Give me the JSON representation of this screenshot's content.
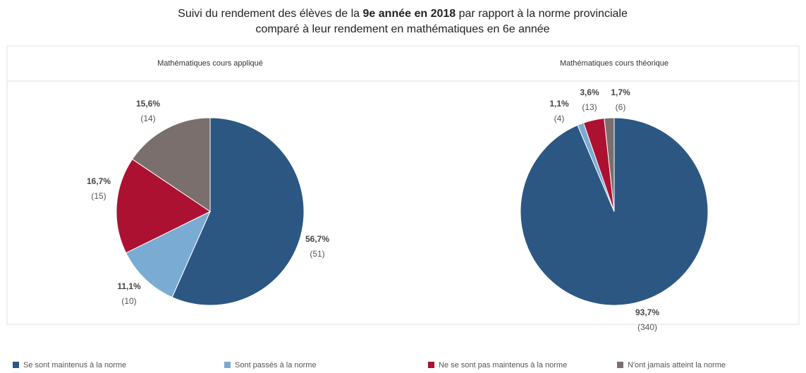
{
  "title_parts": [
    "Suivi du rendement des élèves de la ",
    "9e année en 2018",
    " par rapport à la norme provinciale"
  ],
  "subtitle": "comparé à leur rendement en mathématiques en 6e année",
  "legend": {
    "labels": [
      "Se sont maintenus à la norme",
      "Sont passés à la norme",
      "Ne se sont pas maintenus à la norme",
      "N'ont jamais atteint la norme"
    ],
    "colors": [
      "#2c5783",
      "#7aabd2",
      "#ac1131",
      "#7a6f6c"
    ]
  },
  "chart_data": [
    {
      "type": "pie",
      "title": "Mathématiques cours appliqué",
      "values": [
        56.7,
        11.1,
        16.7,
        15.6
      ],
      "value_labels": [
        "56,7%",
        "11,1%",
        "16,7%",
        "15,6%"
      ],
      "counts": [
        51,
        10,
        15,
        14
      ],
      "count_labels": [
        "(51)",
        "(10)",
        "(15)",
        "(14)"
      ]
    },
    {
      "type": "pie",
      "title": "Mathématiques cours théorique",
      "values": [
        93.7,
        1.1,
        3.6,
        1.7
      ],
      "value_labels": [
        "93,7%",
        "1,1%",
        "3,6%",
        "1,7%"
      ],
      "counts": [
        340,
        4,
        13,
        6
      ],
      "count_labels": [
        "(340)",
        "(4)",
        "(13)",
        "(6)"
      ]
    }
  ]
}
